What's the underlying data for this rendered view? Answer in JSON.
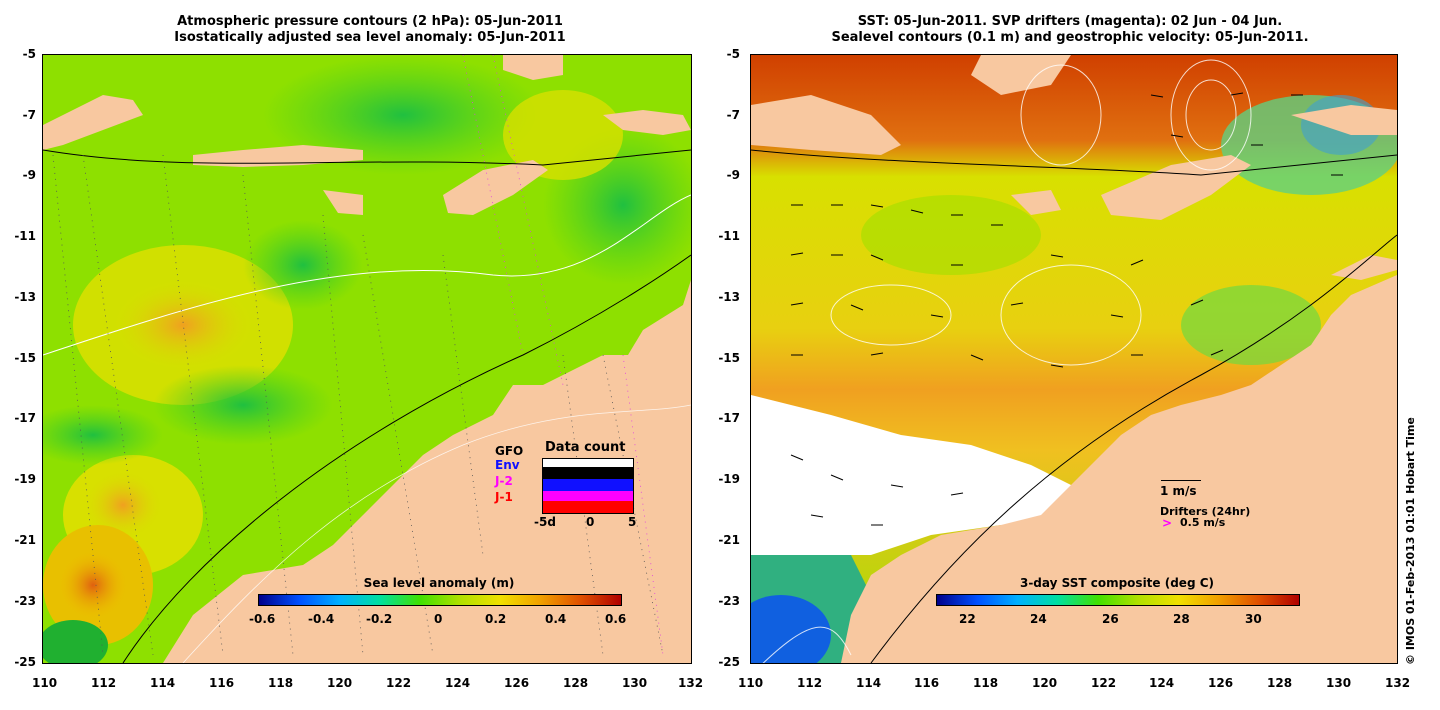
{
  "left_panel": {
    "title_line1": "Atmospheric pressure contours (2 hPa): 05-Jun-2011",
    "title_line2": "Isostatically adjusted sea level anomaly: 05-Jun-2011",
    "colorbar": {
      "title": "Sea level anomaly (m)",
      "ticks": [
        "-0.6",
        "-0.4",
        "-0.2",
        "0",
        "0.2",
        "0.4",
        "0.6"
      ]
    },
    "inset": {
      "title": "Data count",
      "labels": [
        "GFO",
        "Env",
        "J-2",
        "J-1"
      ],
      "label_colors": [
        "#000000",
        "#1010ff",
        "#ff00ff",
        "#ff0000"
      ],
      "x_ticks": [
        "-5d",
        "0",
        "5"
      ]
    }
  },
  "right_panel": {
    "title_line1": "SST: 05-Jun-2011. SVP drifters (magenta): 02 Jun - 04 Jun.",
    "title_line2": "Sealevel contours (0.1 m) and geostrophic velocity: 05-Jun-2011.",
    "colorbar": {
      "title": "3-day SST composite (deg C)",
      "ticks": [
        "22",
        "24",
        "26",
        "28",
        "30"
      ]
    },
    "legend": {
      "velocity_label": "1 m/s",
      "drifters_label": "Drifters (24hr)",
      "drifter_speed": "0.5 m/s",
      "drifter_symbol": ">"
    }
  },
  "axes": {
    "x_ticks": [
      "110",
      "112",
      "114",
      "116",
      "118",
      "120",
      "122",
      "124",
      "126",
      "128",
      "130",
      "132"
    ],
    "y_ticks": [
      "-5",
      "-7",
      "-9",
      "-11",
      "-13",
      "-15",
      "-17",
      "-19",
      "-21",
      "-23",
      "-25"
    ]
  },
  "copyright": "© IMOS 01-Feb-2013 01:01 Hobart Time",
  "colors": {
    "land": "#f8c8a0",
    "sla_mid": "#8ee000",
    "sst_warm": "#e8d020",
    "no_data": "#ffffff"
  }
}
